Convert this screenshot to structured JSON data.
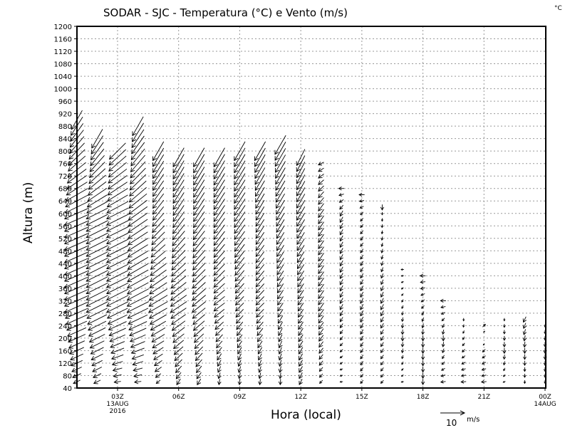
{
  "chart_data": {
    "type": "wind-vector-profile",
    "title": "SODAR - SJC - Temperatura (°C) e Vento (m/s)",
    "corner_unit": "°C",
    "xlabel": "Hora (local)",
    "ylabel": "Altura (m)",
    "ylim": [
      40,
      1200
    ],
    "yticks": [
      40,
      80,
      120,
      160,
      200,
      240,
      280,
      320,
      360,
      400,
      440,
      480,
      520,
      560,
      600,
      640,
      680,
      720,
      760,
      800,
      840,
      880,
      920,
      960,
      1000,
      1040,
      1080,
      1120,
      1160,
      1200
    ],
    "xlim_hours": [
      1,
      24
    ],
    "xticks": [
      {
        "h": 3,
        "l1": "03Z",
        "l2": "13AUG",
        "l3": "2016"
      },
      {
        "h": 6,
        "l1": "06Z"
      },
      {
        "h": 9,
        "l1": "09Z"
      },
      {
        "h": 12,
        "l1": "12Z"
      },
      {
        "h": 15,
        "l1": "15Z"
      },
      {
        "h": 18,
        "l1": "18Z"
      },
      {
        "h": 21,
        "l1": "21Z"
      },
      {
        "h": 24,
        "l1": "00Z",
        "l2": "14AUG"
      }
    ],
    "grid": true,
    "reference_vector": {
      "value": "10",
      "unit": "m/s"
    },
    "level_step_m": 20,
    "columns": [
      {
        "h": 1,
        "top": 900,
        "p": [
          [
            40,
            -2,
            -1
          ],
          [
            300,
            -9,
            -4
          ],
          [
            600,
            -9,
            -4
          ],
          [
            900,
            -4,
            -7
          ]
        ]
      },
      {
        "h": 2,
        "top": 840,
        "p": [
          [
            40,
            -2,
            -1
          ],
          [
            300,
            -8,
            -4
          ],
          [
            600,
            -8,
            -4
          ],
          [
            840,
            -4,
            -7
          ]
        ]
      },
      {
        "h": 3,
        "top": 800,
        "p": [
          [
            40,
            -2,
            0
          ],
          [
            300,
            -8,
            -4
          ],
          [
            600,
            -8,
            -4
          ],
          [
            800,
            -6,
            -6
          ]
        ]
      },
      {
        "h": 4,
        "top": 880,
        "p": [
          [
            40,
            -2,
            0
          ],
          [
            300,
            -8,
            -4
          ],
          [
            600,
            -7,
            -5
          ],
          [
            880,
            -4,
            -7
          ]
        ]
      },
      {
        "h": 5,
        "top": 800,
        "p": [
          [
            40,
            -1,
            -1
          ],
          [
            300,
            -7,
            -4
          ],
          [
            600,
            -4,
            -5
          ],
          [
            800,
            -4,
            -7
          ]
        ]
      },
      {
        "h": 6,
        "top": 780,
        "p": [
          [
            40,
            -1,
            -2
          ],
          [
            300,
            -6,
            -4
          ],
          [
            600,
            -4,
            -6
          ],
          [
            780,
            -4,
            -7
          ]
        ]
      },
      {
        "h": 7,
        "top": 780,
        "p": [
          [
            40,
            -1,
            -2
          ],
          [
            300,
            -5,
            -4
          ],
          [
            600,
            -4,
            -6
          ],
          [
            780,
            -4,
            -7
          ]
        ]
      },
      {
        "h": 8,
        "top": 780,
        "p": [
          [
            40,
            0,
            -2
          ],
          [
            300,
            -4,
            -3
          ],
          [
            600,
            -4,
            -6
          ],
          [
            780,
            -4,
            -7
          ]
        ]
      },
      {
        "h": 9,
        "top": 800,
        "p": [
          [
            40,
            0,
            -2
          ],
          [
            300,
            -3,
            -3
          ],
          [
            600,
            -4,
            -6
          ],
          [
            800,
            -4,
            -7
          ]
        ]
      },
      {
        "h": 10,
        "top": 800,
        "p": [
          [
            40,
            0,
            -2
          ],
          [
            300,
            -3,
            -3
          ],
          [
            600,
            -3,
            -5
          ],
          [
            800,
            -4,
            -7
          ]
        ]
      },
      {
        "h": 11,
        "top": 820,
        "p": [
          [
            40,
            0,
            -2
          ],
          [
            300,
            -2,
            -3
          ],
          [
            600,
            -3,
            -5
          ],
          [
            820,
            -4,
            -7
          ]
        ]
      },
      {
        "h": 12,
        "top": 780,
        "p": [
          [
            40,
            -1,
            -2
          ],
          [
            300,
            -2,
            -3
          ],
          [
            600,
            -3,
            -5
          ],
          [
            780,
            -3,
            -6
          ]
        ]
      },
      {
        "h": 13,
        "top": 760,
        "p": [
          [
            40,
            -1,
            -1
          ],
          [
            300,
            -2,
            -3
          ],
          [
            600,
            -2,
            -3
          ],
          [
            760,
            -2,
            -1
          ]
        ]
      },
      {
        "h": 14,
        "top": 680,
        "p": [
          [
            40,
            -1,
            0
          ],
          [
            300,
            -1,
            -2
          ],
          [
            600,
            -1,
            -2
          ],
          [
            680,
            -2,
            0
          ]
        ]
      },
      {
        "h": 15,
        "top": 660,
        "p": [
          [
            40,
            -1,
            -1
          ],
          [
            300,
            -1,
            -2
          ],
          [
            600,
            -1,
            -1
          ],
          [
            660,
            -2,
            0
          ]
        ]
      },
      {
        "h": 16,
        "top": 620,
        "p": [
          [
            40,
            -1,
            -1
          ],
          [
            300,
            -1,
            -2
          ],
          [
            600,
            0,
            -1
          ],
          [
            620,
            0,
            -2
          ]
        ]
      },
      {
        "h": 17,
        "top": 420,
        "p": [
          [
            40,
            -1,
            0
          ],
          [
            200,
            0,
            -2
          ],
          [
            420,
            -1,
            0
          ]
        ]
      },
      {
        "h": 18,
        "top": 400,
        "p": [
          [
            40,
            0,
            -2
          ],
          [
            200,
            0,
            -2
          ],
          [
            400,
            -2,
            0
          ]
        ]
      },
      {
        "h": 19,
        "top": 320,
        "p": [
          [
            40,
            -2,
            0
          ],
          [
            200,
            0,
            -2
          ],
          [
            320,
            -2,
            0
          ]
        ]
      },
      {
        "h": 20,
        "top": 260,
        "p": [
          [
            40,
            -2,
            0
          ],
          [
            160,
            -1,
            -1
          ],
          [
            260,
            0,
            -1
          ]
        ]
      },
      {
        "h": 21,
        "top": 240,
        "p": [
          [
            40,
            -2,
            0
          ],
          [
            160,
            -1,
            -1
          ],
          [
            240,
            1,
            1
          ]
        ]
      },
      {
        "h": 22,
        "top": 260,
        "p": [
          [
            40,
            -1,
            0
          ],
          [
            160,
            0,
            -2
          ],
          [
            260,
            0,
            -1
          ]
        ]
      },
      {
        "h": 23,
        "top": 260,
        "p": [
          [
            40,
            0,
            -1
          ],
          [
            160,
            0,
            -2
          ],
          [
            260,
            -1,
            -2
          ]
        ]
      },
      {
        "h": 24,
        "top": 240,
        "p": [
          [
            40,
            0,
            -1
          ],
          [
            160,
            0,
            -2
          ],
          [
            240,
            0,
            -1
          ]
        ]
      }
    ]
  }
}
